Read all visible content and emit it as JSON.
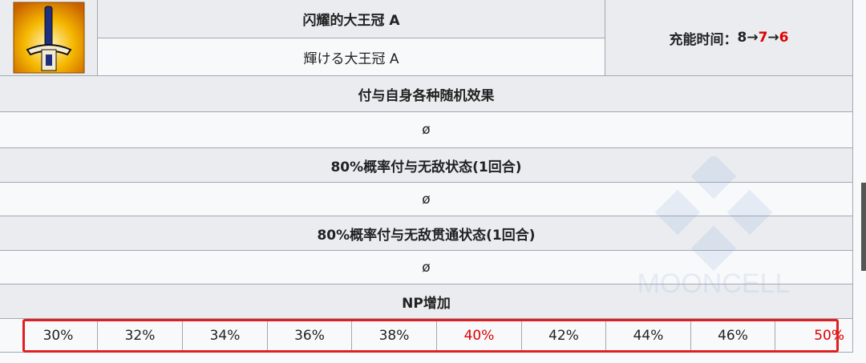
{
  "skill": {
    "icon": "sword-crown-skill-icon",
    "name_cn": "闪耀的大王冠 A",
    "name_jp": "輝ける大王冠 A",
    "cooldown": {
      "label": "充能时间：",
      "base": "8",
      "arrow1": "→",
      "mid": "7",
      "arrow2": "→",
      "max": "6"
    }
  },
  "effects": [
    {
      "title": "付与自身各种随机效果",
      "value": "ø"
    },
    {
      "title": "80%概率付与无敌状态(1回合)",
      "value": "ø"
    },
    {
      "title": "80%概率付与无敌贯通状态(1回合)",
      "value": "ø"
    }
  ],
  "np": {
    "title": "NP增加",
    "values": [
      "30%",
      "32%",
      "34%",
      "36%",
      "38%",
      "40%",
      "42%",
      "44%",
      "46%",
      "50%"
    ],
    "highlight": [
      5,
      9
    ]
  },
  "watermark": "MOONCELL",
  "colors": {
    "highlight": "#e00000",
    "box": "#e02020"
  }
}
